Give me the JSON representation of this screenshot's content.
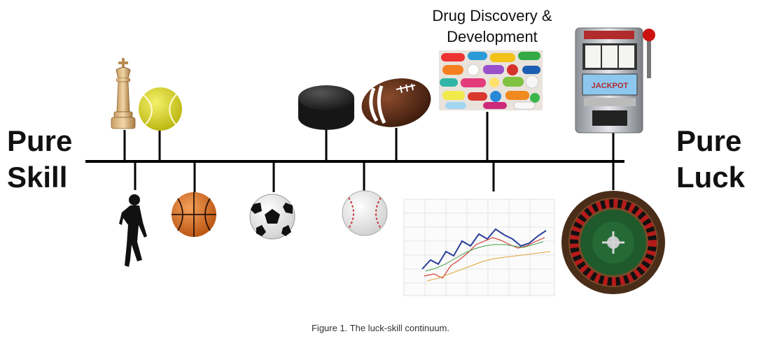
{
  "left_label": {
    "line1": "Pure",
    "line2": "Skill"
  },
  "right_label": {
    "line1": "Pure",
    "line2": "Luck"
  },
  "drug_label": {
    "line1": "Drug Discovery &",
    "line2": "Development"
  },
  "caption": "Figure 1. The luck-skill continuum.",
  "slot_machine_text": "JACKPOT",
  "items_above": [
    "chess",
    "tennis",
    "hockey",
    "american-football",
    "drug-discovery",
    "slot-machine"
  ],
  "items_below": [
    "running",
    "basketball",
    "soccer",
    "baseball",
    "stock-market",
    "roulette"
  ]
}
